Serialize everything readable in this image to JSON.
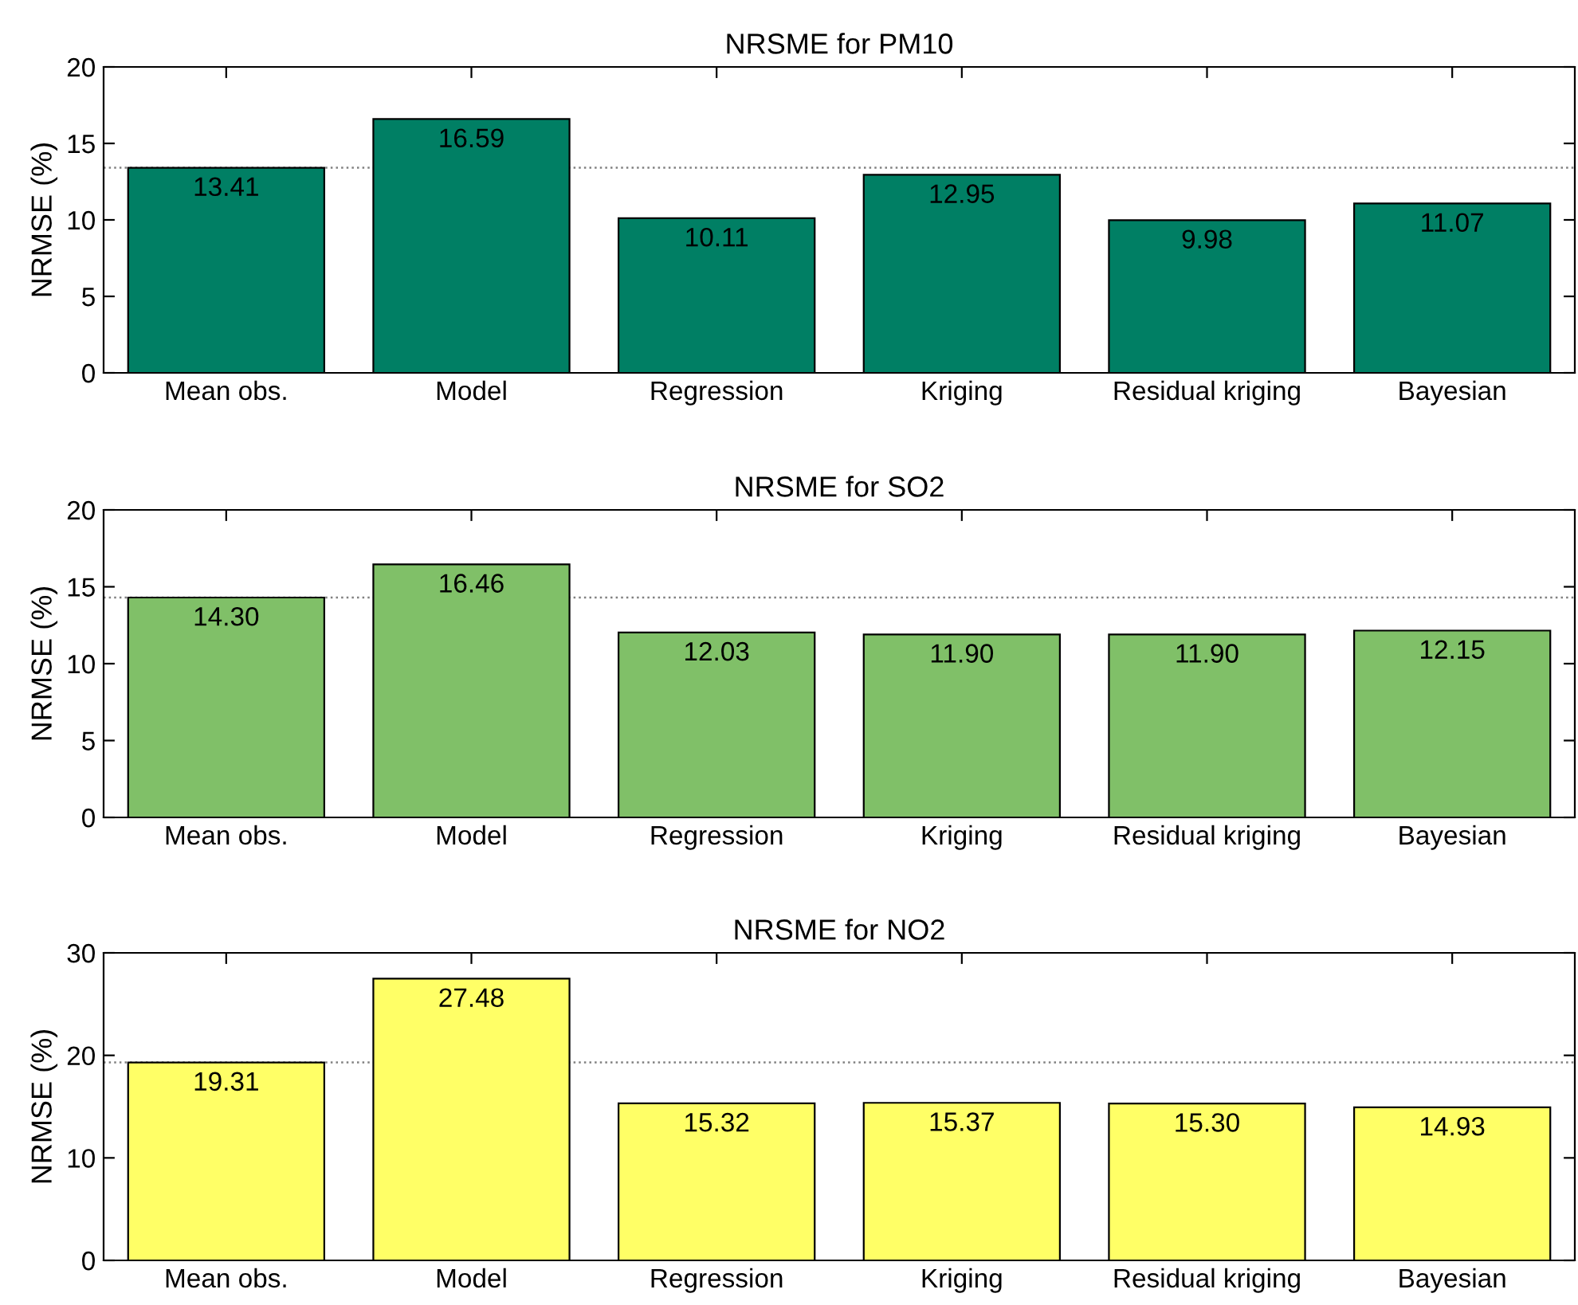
{
  "chart_data": [
    {
      "type": "bar",
      "title": "NRSME for PM10",
      "ylabel": "NRMSE (%)",
      "categories": [
        "Mean obs.",
        "Model",
        "Regression",
        "Kriging",
        "Residual kriging",
        "Bayesian"
      ],
      "values": [
        13.41,
        16.59,
        10.11,
        12.95,
        9.98,
        11.07
      ],
      "value_labels": [
        "13.41",
        "16.59",
        "10.11",
        "12.95",
        "9.98",
        "11.07"
      ],
      "color": "#007f64",
      "ylim": [
        0,
        20
      ],
      "yticks": [
        0,
        5,
        10,
        15,
        20
      ],
      "ref_lines": [
        {
          "axis": "y",
          "value": 13.41,
          "line_style": "dotted",
          "color": "#808080"
        }
      ]
    },
    {
      "type": "bar",
      "title": "NRSME for SO2",
      "ylabel": "NRMSE (%)",
      "categories": [
        "Mean obs.",
        "Model",
        "Regression",
        "Kriging",
        "Residual kriging",
        "Bayesian"
      ],
      "values": [
        14.3,
        16.46,
        12.03,
        11.9,
        11.9,
        12.15
      ],
      "value_labels": [
        "14.30",
        "16.46",
        "12.03",
        "11.90",
        "11.90",
        "12.15"
      ],
      "color": "#80c068",
      "ylim": [
        0,
        20
      ],
      "yticks": [
        0,
        5,
        10,
        15,
        20
      ],
      "ref_lines": [
        {
          "axis": "y",
          "value": 14.3,
          "line_style": "dotted",
          "color": "#808080"
        }
      ]
    },
    {
      "type": "bar",
      "title": "NRSME for NO2",
      "ylabel": "NRMSE (%)",
      "categories": [
        "Mean obs.",
        "Model",
        "Regression",
        "Kriging",
        "Residual kriging",
        "Bayesian"
      ],
      "values": [
        19.31,
        27.48,
        15.32,
        15.37,
        15.3,
        14.93
      ],
      "value_labels": [
        "19.31",
        "27.48",
        "15.32",
        "15.37",
        "15.30",
        "14.93"
      ],
      "color": "#ffff66",
      "ylim": [
        0,
        30
      ],
      "yticks": [
        0,
        10,
        20,
        30
      ],
      "ref_lines": [
        {
          "axis": "y",
          "value": 19.31,
          "line_style": "dotted",
          "color": "#808080"
        }
      ]
    }
  ]
}
